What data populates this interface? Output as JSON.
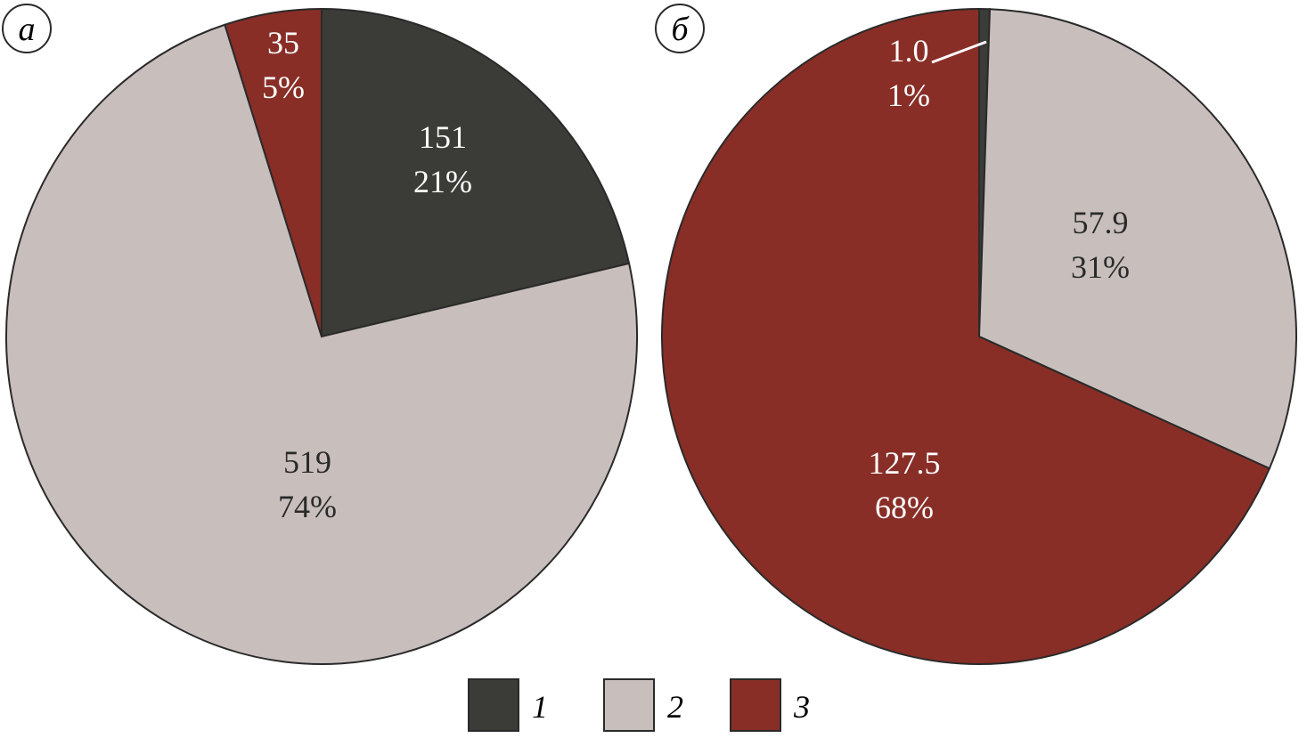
{
  "chart_data": [
    {
      "type": "pie",
      "panel_label": "а",
      "categories": [
        "1",
        "2",
        "3"
      ],
      "values": [
        151,
        519,
        35
      ],
      "percent_labels": [
        "21%",
        "74%",
        "5%"
      ],
      "value_labels": [
        "151",
        "519",
        "35"
      ],
      "label_colors": [
        "#ffffff",
        "#2a2a2a",
        "#ffffff"
      ],
      "start_angle_deg": 0,
      "direction": "clockwise"
    },
    {
      "type": "pie",
      "panel_label": "б",
      "categories": [
        "1",
        "2",
        "3"
      ],
      "values": [
        1.0,
        57.9,
        127.5
      ],
      "percent_labels": [
        "1%",
        "31%",
        "68%"
      ],
      "value_labels": [
        "1.0",
        "57.9",
        "127.5"
      ],
      "label_colors": [
        "#ffffff",
        "#2a2a2a",
        "#ffffff"
      ],
      "start_angle_deg": 0,
      "direction": "clockwise"
    }
  ],
  "legend": {
    "placement": "bottom-center",
    "entries": [
      {
        "label": "1",
        "color": "#3b3c38"
      },
      {
        "label": "2",
        "color": "#c8bfbd"
      },
      {
        "label": "3",
        "color": "#882e27"
      }
    ]
  },
  "colors": {
    "series": [
      "#3b3c38",
      "#c8bfbd",
      "#882e27"
    ],
    "outline": "#2a2a2a"
  }
}
